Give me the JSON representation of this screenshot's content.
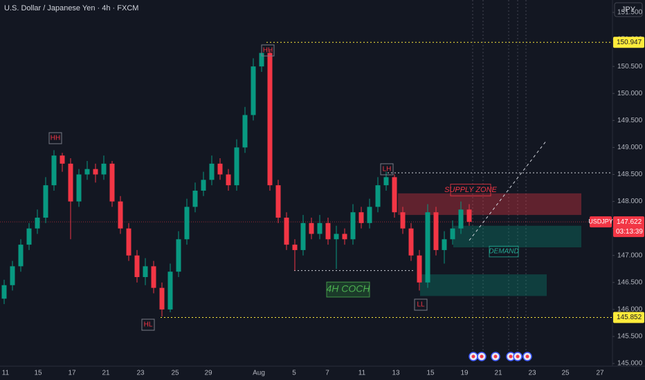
{
  "chart_data": {
    "type": "candlestick",
    "title": "U.S. Dollar / Japanese Yen · 4h · FXCM",
    "currency": "JPY",
    "symbol": "USDJPY",
    "countdown": "03:13:39",
    "x_labels": [
      "11",
      "15",
      "17",
      "21",
      "23",
      "25",
      "29",
      "Aug",
      "5",
      "7",
      "11",
      "13",
      "15",
      "19",
      "21",
      "23",
      "25",
      "27"
    ],
    "ylim": [
      144.95,
      151.73
    ],
    "yticks": [
      {
        "value": 145,
        "label": "145.000"
      },
      {
        "value": 145.5,
        "label": "145.500"
      },
      {
        "value": 146,
        "label": "146.000"
      },
      {
        "value": 146.5,
        "label": "146.500"
      },
      {
        "value": 147,
        "label": "147.000"
      },
      {
        "value": 147.5,
        "label": "147.500"
      },
      {
        "value": 148,
        "label": "148.000"
      },
      {
        "value": 148.5,
        "label": "148.500"
      },
      {
        "value": 149,
        "label": "149.000"
      },
      {
        "value": 149.5,
        "label": "149.500"
      },
      {
        "value": 150,
        "label": "150.000"
      },
      {
        "value": 150.5,
        "label": "150.500"
      },
      {
        "value": 151,
        "label": "151.000"
      },
      {
        "value": 151.5,
        "label": "151.500"
      }
    ],
    "up_color": "#089981",
    "down_color": "#f23645",
    "ohlc": [
      [
        146.2,
        146.55,
        146.1,
        146.45
      ],
      [
        146.45,
        146.9,
        146.35,
        146.8
      ],
      [
        146.8,
        147.3,
        146.7,
        147.2
      ],
      [
        147.2,
        147.6,
        147.1,
        147.5
      ],
      [
        147.5,
        147.85,
        147.4,
        147.7
      ],
      [
        147.7,
        148.45,
        147.6,
        148.3
      ],
      [
        148.3,
        148.95,
        148.2,
        148.85
      ],
      [
        148.85,
        148.9,
        148.55,
        148.7
      ],
      [
        148.7,
        148.8,
        147.3,
        148.0
      ],
      [
        148.0,
        148.6,
        147.9,
        148.5
      ],
      [
        148.5,
        148.75,
        148.4,
        148.6
      ],
      [
        148.6,
        148.7,
        148.35,
        148.5
      ],
      [
        148.5,
        148.85,
        148.4,
        148.7
      ],
      [
        148.7,
        148.75,
        147.9,
        148.0
      ],
      [
        148.0,
        148.1,
        147.4,
        147.5
      ],
      [
        147.5,
        147.6,
        146.9,
        147.0
      ],
      [
        147.0,
        147.1,
        146.5,
        146.6
      ],
      [
        146.6,
        146.95,
        146.45,
        146.8
      ],
      [
        146.8,
        146.9,
        146.3,
        146.4
      ],
      [
        146.4,
        146.5,
        145.87,
        146.0
      ],
      [
        146.0,
        146.85,
        145.95,
        146.7
      ],
      [
        146.7,
        147.45,
        146.6,
        147.3
      ],
      [
        147.3,
        148.05,
        147.2,
        147.9
      ],
      [
        147.9,
        148.35,
        147.8,
        148.2
      ],
      [
        148.2,
        148.55,
        148.1,
        148.4
      ],
      [
        148.4,
        148.85,
        148.3,
        148.7
      ],
      [
        148.7,
        148.8,
        148.4,
        148.5
      ],
      [
        148.5,
        148.6,
        148.2,
        148.3
      ],
      [
        148.3,
        149.15,
        148.2,
        149.0
      ],
      [
        149.0,
        149.75,
        148.9,
        149.6
      ],
      [
        149.6,
        150.65,
        149.5,
        150.5
      ],
      [
        150.5,
        150.88,
        150.4,
        150.75
      ],
      [
        150.75,
        150.8,
        148.2,
        148.3
      ],
      [
        148.3,
        148.4,
        147.6,
        147.7
      ],
      [
        147.7,
        147.8,
        147.1,
        147.2
      ],
      [
        147.2,
        147.3,
        146.72,
        147.1
      ],
      [
        147.1,
        147.75,
        147.0,
        147.6
      ],
      [
        147.6,
        147.7,
        147.3,
        147.4
      ],
      [
        147.4,
        147.75,
        147.3,
        147.6
      ],
      [
        147.6,
        147.7,
        147.2,
        147.3
      ],
      [
        147.3,
        147.55,
        146.75,
        147.4
      ],
      [
        147.4,
        147.5,
        147.2,
        147.3
      ],
      [
        147.3,
        147.95,
        147.2,
        147.8
      ],
      [
        147.8,
        147.9,
        147.5,
        147.6
      ],
      [
        147.6,
        148.05,
        147.5,
        147.9
      ],
      [
        147.9,
        148.45,
        147.8,
        148.3
      ],
      [
        148.3,
        148.55,
        148.2,
        148.45
      ],
      [
        148.45,
        148.5,
        147.7,
        147.8
      ],
      [
        147.8,
        147.9,
        147.4,
        147.5
      ],
      [
        147.5,
        147.6,
        146.9,
        147.0
      ],
      [
        147.0,
        147.1,
        146.35,
        146.5
      ],
      [
        146.5,
        147.95,
        146.4,
        147.8
      ],
      [
        147.8,
        147.9,
        147.0,
        147.1
      ],
      [
        147.1,
        147.45,
        146.85,
        147.3
      ],
      [
        147.3,
        147.65,
        147.2,
        147.5
      ],
      [
        147.5,
        148.0,
        147.4,
        147.85
      ],
      [
        147.85,
        147.95,
        147.55,
        147.622
      ]
    ],
    "price_tags": [
      {
        "value": 150.947,
        "label": "150.947"
      },
      {
        "value": 145.852,
        "label": "145.852"
      },
      {
        "value": 147.622,
        "label": "147.622"
      }
    ],
    "levels": [
      148.53,
      146.72
    ],
    "zones": [
      {
        "name": "SUPPLY ZONE",
        "range": [
          147.75,
          148.15
        ]
      },
      {
        "name": "DEMAND",
        "range": [
          147.15,
          147.55
        ]
      },
      {
        "name": "4H COCH",
        "range": [
          146.25,
          146.65
        ]
      }
    ],
    "swing_labels": [
      "HH",
      "HH",
      "HL",
      "LH",
      "LL"
    ]
  }
}
